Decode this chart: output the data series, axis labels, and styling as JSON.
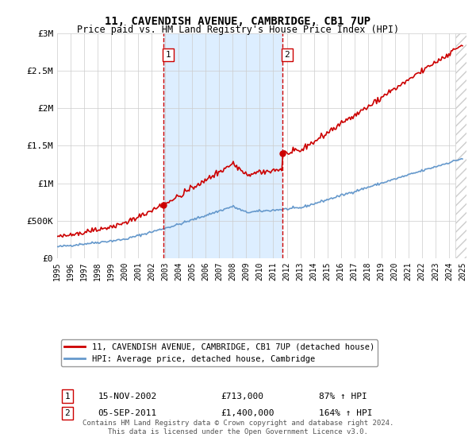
{
  "title": "11, CAVENDISH AVENUE, CAMBRIDGE, CB1 7UP",
  "subtitle": "Price paid vs. HM Land Registry's House Price Index (HPI)",
  "ylim": [
    0,
    3000000
  ],
  "yticks": [
    0,
    500000,
    1000000,
    1500000,
    2000000,
    2500000,
    3000000
  ],
  "ytick_labels": [
    "£0",
    "£500K",
    "£1M",
    "£1.5M",
    "£2M",
    "£2.5M",
    "£3M"
  ],
  "purchase1_date": 2002.88,
  "purchase1_price": 713000,
  "purchase1_label": "1",
  "purchase1_date_str": "15-NOV-2002",
  "purchase1_price_str": "£713,000",
  "purchase1_hpi_str": "87% ↑ HPI",
  "purchase2_date": 2011.68,
  "purchase2_price": 1400000,
  "purchase2_label": "2",
  "purchase2_date_str": "05-SEP-2011",
  "purchase2_price_str": "£1,400,000",
  "purchase2_hpi_str": "164% ↑ HPI",
  "line1_color": "#cc0000",
  "line2_color": "#6699cc",
  "shade_color": "#ddeeff",
  "dashed_color": "#cc0000",
  "background_color": "#ffffff",
  "grid_color": "#cccccc",
  "legend1_label": "11, CAVENDISH AVENUE, CAMBRIDGE, CB1 7UP (detached house)",
  "legend2_label": "HPI: Average price, detached house, Cambridge",
  "footer": "Contains HM Land Registry data © Crown copyright and database right 2024.\nThis data is licensed under the Open Government Licence v3.0.",
  "hatch_color": "#cccccc",
  "xmin": 1995,
  "xmax": 2025.3
}
